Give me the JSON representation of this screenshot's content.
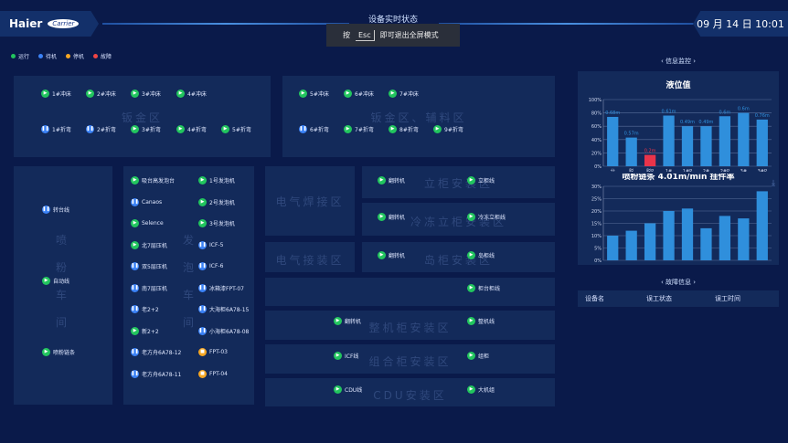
{
  "header": {
    "brand": "Haier",
    "partner_logo": "Carrier",
    "title": "设备实时状态",
    "datetime": "09 月 14 日 10:01"
  },
  "toast": {
    "prefix": "按",
    "key": "Esc",
    "suffix": "即可退出全屏模式"
  },
  "legend": [
    {
      "label": "运行",
      "color": "#22c55e"
    },
    {
      "label": "待机",
      "color": "#3b82f6"
    },
    {
      "label": "停机",
      "color": "#f5a623"
    },
    {
      "label": "故障",
      "color": "#ef4444"
    }
  ],
  "status_colors": {
    "run": "#22c55e",
    "standby": "#3b82f6",
    "stop": "#f5a623",
    "fault": "#ef4444"
  },
  "zones": {
    "sheet_metal": {
      "name": "钣金区",
      "devices": [
        {
          "label": "1#冲床",
          "status": "run"
        },
        {
          "label": "2#冲床",
          "status": "run"
        },
        {
          "label": "3#冲床",
          "status": "run"
        },
        {
          "label": "4#冲床",
          "status": "run"
        },
        {
          "label": "1#折弯",
          "status": "standby"
        },
        {
          "label": "2#折弯",
          "status": "standby"
        },
        {
          "label": "3#折弯",
          "status": "run"
        },
        {
          "label": "4#折弯",
          "status": "run"
        },
        {
          "label": "5#折弯",
          "status": "run"
        }
      ]
    },
    "sheet_aux": {
      "name": "钣金区、辅料区",
      "devices": [
        {
          "label": "5#冲床",
          "status": "run"
        },
        {
          "label": "6#冲床",
          "status": "run"
        },
        {
          "label": "7#冲床",
          "status": "run"
        },
        {
          "label": "6#折弯",
          "status": "standby"
        },
        {
          "label": "7#折弯",
          "status": "run"
        },
        {
          "label": "8#折弯",
          "status": "run"
        },
        {
          "label": "9#折弯",
          "status": "run"
        }
      ]
    },
    "powder": {
      "name": "喷粉车间",
      "devices": [
        {
          "label": "转台线",
          "status": "standby"
        },
        {
          "label": "自动线",
          "status": "run"
        },
        {
          "label": "喷粉链条",
          "status": "run"
        }
      ]
    },
    "foam": {
      "name": "发泡车间",
      "devices": [
        {
          "label": "吸台高发泡台",
          "status": "run"
        },
        {
          "label": "1号发泡机",
          "status": "run"
        },
        {
          "label": "Canaos",
          "status": "standby"
        },
        {
          "label": "2号发泡机",
          "status": "run"
        },
        {
          "label": "Selence",
          "status": "run"
        },
        {
          "label": "3号发泡机",
          "status": "run"
        },
        {
          "label": "北7层压机",
          "status": "run"
        },
        {
          "label": "ICF-5",
          "status": "standby"
        },
        {
          "label": "双5层压机",
          "status": "standby"
        },
        {
          "label": "ICF-6",
          "status": "standby"
        },
        {
          "label": "南7层压机",
          "status": "standby"
        },
        {
          "label": "冰箱漆FPT-07",
          "status": "standby"
        },
        {
          "label": "老2+2",
          "status": "standby"
        },
        {
          "label": "大海柜6A78-15",
          "status": "standby"
        },
        {
          "label": "新2+2",
          "status": "run"
        },
        {
          "label": "小海柜6A78-08",
          "status": "standby"
        },
        {
          "label": "老方舟6A78-12",
          "status": "standby"
        },
        {
          "label": "FPT-03",
          "status": "stop"
        },
        {
          "label": "老方舟6A78-11",
          "status": "standby"
        },
        {
          "label": "FPT-04",
          "status": "stop"
        }
      ]
    },
    "weld": {
      "name": "电气焊接区"
    },
    "elec": {
      "name": "电气接装区"
    },
    "upright": {
      "name": "立柜安装区",
      "devices": [
        {
          "label": "翻转机",
          "status": "run"
        },
        {
          "label": "立柜线",
          "status": "run"
        }
      ]
    },
    "freezer": {
      "name": "冷冻立柜安装区",
      "devices": [
        {
          "label": "翻转机",
          "status": "run"
        },
        {
          "label": "冷冻立柜线",
          "status": "run"
        }
      ]
    },
    "island": {
      "name": "岛柜安装区",
      "devices": [
        {
          "label": "翻转机",
          "status": "run"
        },
        {
          "label": "岛柜线",
          "status": "run"
        }
      ]
    },
    "counter": {
      "name": "",
      "devices": [
        {
          "label": "柜台柜线",
          "status": "run"
        }
      ]
    },
    "whole": {
      "name": "整机柜安装区",
      "devices": [
        {
          "label": "翻转机",
          "status": "run"
        },
        {
          "label": "整机线",
          "status": "run"
        }
      ]
    },
    "combo": {
      "name": "组合柜安装区",
      "devices": [
        {
          "label": "ICF线",
          "status": "run"
        },
        {
          "label": "组柜",
          "status": "run"
        }
      ]
    },
    "cdu": {
      "name": "CDU安装区",
      "devices": [
        {
          "label": "CDU线",
          "status": "run"
        },
        {
          "label": "大机组",
          "status": "run"
        }
      ]
    }
  },
  "sidebar": {
    "monitor_title": "信息监控",
    "fault_title": "故障信息",
    "fault_columns": [
      "设备名",
      "误工状态",
      "误工时间"
    ],
    "download_icon": "download-icon"
  },
  "chart_data": [
    {
      "type": "bar",
      "title": "液位值",
      "categories": [
        "分",
        "脱",
        "脱P",
        "1#",
        "1#P",
        "2#",
        "2#P",
        "3#",
        "3#P"
      ],
      "values": [
        74,
        43,
        17,
        76,
        60,
        60,
        75,
        80,
        70
      ],
      "data_labels": [
        "0.68m",
        "0.57m",
        "0.2m",
        "0.61m",
        "0.49m",
        "0.49m",
        "0.6m",
        "0.6m",
        "0.76m"
      ],
      "bar_colors": [
        "#2f8fdc",
        "#2f8fdc",
        "#e8344a",
        "#2f8fdc",
        "#2f8fdc",
        "#2f8fdc",
        "#2f8fdc",
        "#2f8fdc",
        "#2f8fdc"
      ],
      "ylim": [
        0,
        100
      ],
      "yticks": [
        "0%",
        "20%",
        "40%",
        "60%",
        "80%",
        "100%"
      ],
      "grid": true
    },
    {
      "type": "bar",
      "title": "喷粉链条 4.01m/min 挂件率",
      "categories": [
        "",
        "",
        "",
        "",
        "",
        "",
        "",
        "",
        ""
      ],
      "values": [
        10,
        12,
        15,
        20,
        21,
        13,
        18,
        17,
        28
      ],
      "ylim": [
        0,
        30
      ],
      "yticks": [
        "0%",
        "5%",
        "10%",
        "15%",
        "20%",
        "25%",
        "30%"
      ],
      "grid": true
    }
  ]
}
